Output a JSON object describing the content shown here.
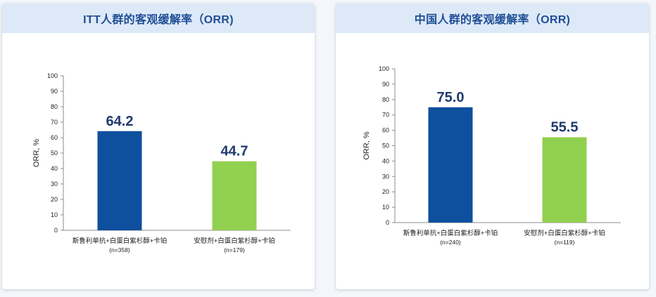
{
  "colors": {
    "header_bg": "#dde9f7",
    "header_text": "#1f4e96",
    "bar_primary": "#0e4f9e",
    "bar_secondary": "#92d050",
    "value_text": "#1f3a6e"
  },
  "chart_data": [
    {
      "type": "bar",
      "title": "ITT人群的客观缓解率（ORR)",
      "ylabel": "ORR, %",
      "xlabel": "",
      "ylim": [
        0,
        100
      ],
      "yticks": [
        0,
        10,
        20,
        30,
        40,
        50,
        60,
        70,
        80,
        90,
        100
      ],
      "grid": false,
      "categories": [
        "斯鲁利单抗+白蛋白紫杉醇+卡铂",
        "安慰剂+白蛋白紫杉醇+卡铂"
      ],
      "sample_sizes": [
        "(n=358)",
        "(n=179)"
      ],
      "values": [
        64.2,
        44.7
      ],
      "value_labels": [
        "64.2",
        "44.7"
      ]
    },
    {
      "type": "bar",
      "title": "中国人群的客观缓解率（ORR)",
      "ylabel": "ORR, %",
      "xlabel": "",
      "ylim": [
        0,
        100
      ],
      "yticks": [
        0,
        10,
        20,
        30,
        40,
        50,
        60,
        70,
        80,
        90,
        100
      ],
      "grid": false,
      "categories": [
        "斯鲁利单抗+白蛋白紫杉醇+卡铂",
        "安慰剂+白蛋白紫杉醇+卡铂"
      ],
      "sample_sizes": [
        "(n=240)",
        "(n=119)"
      ],
      "values": [
        75.0,
        55.5
      ],
      "value_labels": [
        "75.0",
        "55.5"
      ]
    }
  ]
}
